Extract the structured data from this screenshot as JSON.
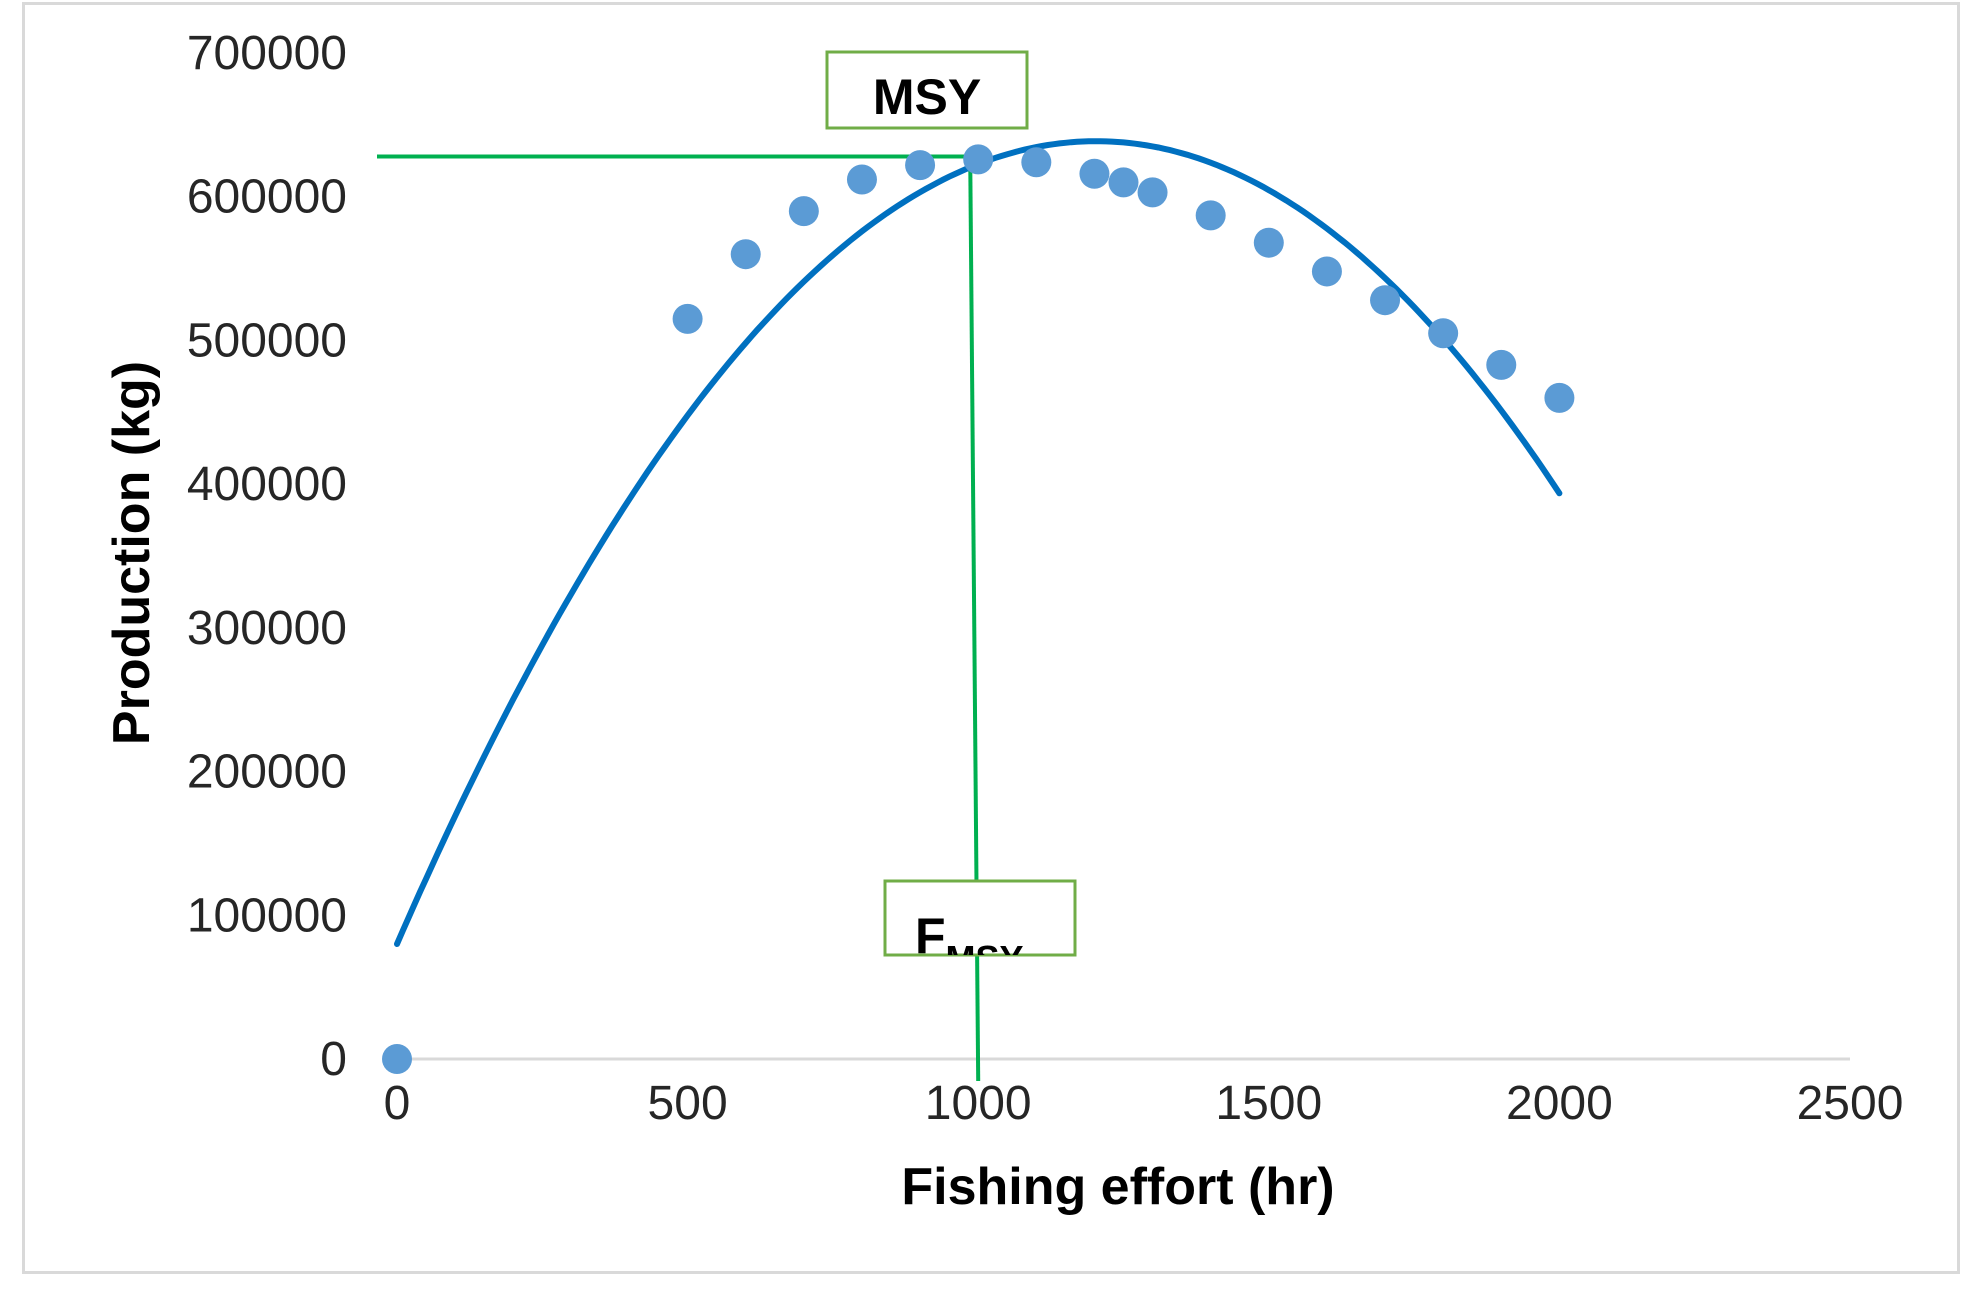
{
  "chart_data": {
    "type": "scatter",
    "title": "",
    "xlabel": "Fishing effort (hr)",
    "ylabel": "Production (kg)",
    "xlim": [
      0,
      2500
    ],
    "ylim": [
      0,
      700000
    ],
    "xticks": [
      0,
      500,
      1000,
      1500,
      2000,
      2500
    ],
    "yticks": [
      0,
      100000,
      200000,
      300000,
      400000,
      500000,
      600000,
      700000
    ],
    "grid": false,
    "legend": "none",
    "colors": {
      "points": "#5b9bd5",
      "curve": "#0070c0",
      "msy_lines": "#00b050",
      "callout_border": "#70ad47",
      "axis": "#d9d9d9"
    },
    "points": [
      {
        "x": 0,
        "y": 0
      },
      {
        "x": 500,
        "y": 515000
      },
      {
        "x": 600,
        "y": 560000
      },
      {
        "x": 700,
        "y": 590000
      },
      {
        "x": 800,
        "y": 612000
      },
      {
        "x": 900,
        "y": 622000
      },
      {
        "x": 1000,
        "y": 626000
      },
      {
        "x": 1100,
        "y": 624000
      },
      {
        "x": 1200,
        "y": 616000
      },
      {
        "x": 1250,
        "y": 610000
      },
      {
        "x": 1300,
        "y": 603000
      },
      {
        "x": 1400,
        "y": 587000
      },
      {
        "x": 1500,
        "y": 568000
      },
      {
        "x": 1600,
        "y": 548000
      },
      {
        "x": 1700,
        "y": 528000
      },
      {
        "x": 1800,
        "y": 505000
      },
      {
        "x": 1900,
        "y": 483000
      },
      {
        "x": 2000,
        "y": 460000
      }
    ],
    "trend_curve": {
      "type": "quadratic",
      "coefficients": {
        "a": -0.3859,
        "b": 928.6,
        "c": 80000
      },
      "x_range": [
        0,
        2000
      ]
    },
    "msy": {
      "x": 1000,
      "y": 628000,
      "label": "MSY",
      "effort_label_main": "F",
      "effort_label_sub": "MSY"
    }
  }
}
